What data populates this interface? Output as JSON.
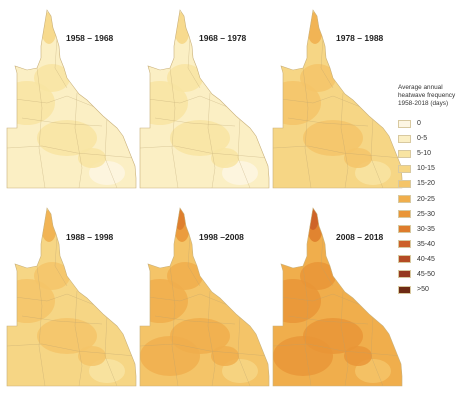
{
  "panels": [
    {
      "label": "1958 – 1968",
      "level": 1
    },
    {
      "label": "1968 – 1978",
      "level": 1
    },
    {
      "label": "1978 – 1988",
      "level": 3
    },
    {
      "label": "1988 – 1998",
      "level": 3
    },
    {
      "label": "1998 –2008",
      "level": 4
    },
    {
      "label": "2008 – 2018",
      "level": 5
    }
  ],
  "legend": {
    "title_lines": [
      "Average annual",
      "heatwave frequency",
      "1958-2018 (days)"
    ],
    "classes": [
      {
        "label": "0",
        "color": "#fdf6e3"
      },
      {
        "label": "0-5",
        "color": "#fbefc4"
      },
      {
        "label": "5-10",
        "color": "#f8e4a2"
      },
      {
        "label": "10-15",
        "color": "#f6d685"
      },
      {
        "label": "15-20",
        "color": "#f4c468"
      },
      {
        "label": "20-25",
        "color": "#f0ae4c"
      },
      {
        "label": "25-30",
        "color": "#e99537"
      },
      {
        "label": "30-35",
        "color": "#de7c2c"
      },
      {
        "label": "35-40",
        "color": "#cc6028"
      },
      {
        "label": "40-45",
        "color": "#b44b24"
      },
      {
        "label": "45-50",
        "color": "#963a1f"
      },
      {
        "label": ">50",
        "color": "#6e2a14"
      }
    ]
  }
}
